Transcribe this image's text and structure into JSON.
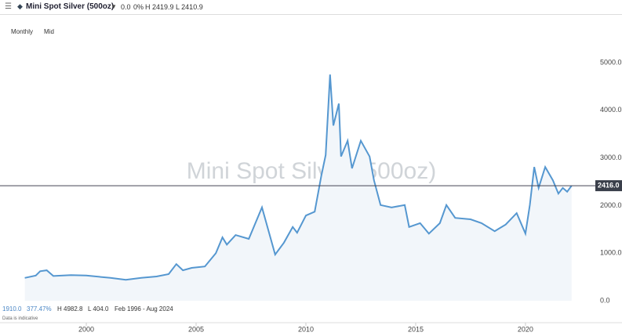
{
  "header": {
    "instrument": "Mini Spot Silver (500oz)",
    "change": "0.0",
    "change_pct": "0%",
    "high": "H 2419.9",
    "low": "L 2410.9",
    "interval": "Monthly",
    "price_type": "Mid"
  },
  "footer": {
    "start_value": "1910.0",
    "total_change": "377.47%",
    "high": "H 4982.8",
    "low": "L 404.0",
    "range": "Feb 1996 - Aug 2024",
    "note": "Data is indicative"
  },
  "chart_data": {
    "type": "line",
    "watermark": "Mini Spot Silver (500oz)",
    "color": "#5597d0",
    "area_color": "#f2f6fa",
    "x": [
      1997.2,
      1997.7,
      1997.9,
      1998.2,
      1998.5,
      1999.3,
      2000,
      2001.1,
      2001.8,
      2002.5,
      2003.2,
      2003.75,
      2004.1,
      2004.4,
      2004.8,
      2005.4,
      2005.9,
      2006.2,
      2006.4,
      2006.8,
      2007.4,
      2008.0,
      2008.2,
      2008.6,
      2009.0,
      2009.4,
      2009.6,
      2010.0,
      2010.4,
      2010.7,
      2010.9,
      2011.1,
      2011.25,
      2011.5,
      2011.6,
      2011.9,
      2012.1,
      2012.5,
      2012.9,
      2013.1,
      2013.4,
      2013.9,
      2014.5,
      2014.7,
      2015.2,
      2015.6,
      2016.1,
      2016.4,
      2016.8,
      2017.5,
      2018.0,
      2018.6,
      2019.1,
      2019.6,
      2020.0,
      2020.2,
      2020.4,
      2020.6,
      2020.9,
      2021.25,
      2021.5,
      2021.7,
      2021.9,
      2022.1
    ],
    "values": [
      480,
      530,
      620,
      640,
      520,
      540,
      530,
      480,
      440,
      480,
      510,
      560,
      770,
      640,
      690,
      720,
      1000,
      1330,
      1180,
      1380,
      1300,
      1960,
      1630,
      970,
      1220,
      1550,
      1430,
      1790,
      1870,
      2620,
      3060,
      4750,
      3680,
      4140,
      3030,
      3360,
      2780,
      3360,
      3030,
      2530,
      2010,
      1960,
      2010,
      1550,
      1630,
      1410,
      1630,
      2010,
      1740,
      1710,
      1630,
      1460,
      1600,
      1840,
      1410,
      2010,
      2810,
      2370,
      2810,
      2530,
      2250,
      2370,
      2290,
      2416
    ],
    "xlim": [
      1996.07,
      2022.86
    ],
    "xticks": [
      2000,
      2005,
      2010,
      2015,
      2020
    ],
    "ylim": [
      0,
      5000
    ],
    "yticks": [
      {
        "value": 0,
        "label": "0.0"
      },
      {
        "value": 1000,
        "label": "1000.0"
      },
      {
        "value": 2000,
        "label": "2000.0"
      },
      {
        "value": 3000,
        "label": "3000.0"
      },
      {
        "value": 4000,
        "label": "4000.0"
      },
      {
        "value": 5000,
        "label": "5000.0"
      }
    ],
    "last_price": {
      "value": 2416,
      "label": "2416.0"
    }
  }
}
